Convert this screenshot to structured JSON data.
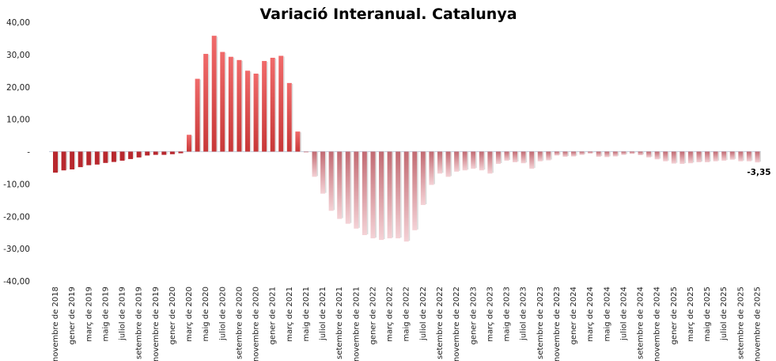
{
  "chart_data": {
    "type": "bar",
    "title": "Variació Interanual. Catalunya",
    "xlabel": "",
    "ylabel": "",
    "ylim": [
      -40,
      40
    ],
    "yticks": [
      40,
      30,
      20,
      10,
      0,
      -10,
      -20,
      -30,
      -40
    ],
    "ytick_labels": [
      "40,00",
      "30,00",
      "20,00",
      "10,00",
      "-",
      "-10,00",
      "-20,00",
      "-30,00",
      "-40,00"
    ],
    "grid": false,
    "legend": "none",
    "colors": {
      "dark": "#a8141c",
      "bright": "#e05858",
      "pale": "#f2c6cc"
    },
    "categories": [
      "novembre de 2018",
      "desembre de 2018",
      "gener de 2019",
      "febrer de 2019",
      "març de 2019",
      "abril de 2019",
      "maig de 2019",
      "juny de 2019",
      "juliol de 2019",
      "agost de 2019",
      "setembre de 2019",
      "octubre de 2019",
      "novembre de 2019",
      "desembre de 2019",
      "gener de 2020",
      "febrer de 2020",
      "març de 2020",
      "abril de 2020",
      "maig de 2020",
      "juny de 2020",
      "juliol de 2020",
      "agost de 2020",
      "setembre de 2020",
      "octubre de 2020",
      "novembre de 2020",
      "desembre de 2020",
      "gener de 2021",
      "febrer de 2021",
      "març de 2021",
      "abril de 2021",
      "maig de 2021",
      "juny de 2021",
      "juliol de 2021",
      "agost de 2021",
      "setembre de 2021",
      "octubre de 2021",
      "novembre de 2021",
      "desembre de 2021",
      "gener de 2022",
      "febrer de 2022",
      "març de 2022",
      "abril de 2022",
      "maig de 2022",
      "juny de 2022",
      "juliol de 2022",
      "agost de 2022",
      "setembre de 2022",
      "octubre de 2022",
      "novembre de 2022",
      "desembre de 2022",
      "gener de 2023",
      "febrer de 2023",
      "març de 2023",
      "abril de 2023",
      "maig de 2023",
      "juny de 2023",
      "juliol de 2023",
      "agost de 2023",
      "setembre de 2023",
      "octubre de 2023",
      "novembre de 2023",
      "desembre de 2023",
      "gener de 2024",
      "febrer de 2024",
      "març de 2024",
      "abril de 2024",
      "maig de 2024",
      "juny de 2024",
      "juliol de 2024",
      "agost de 2024",
      "setembre de 2024",
      "octubre de 2024",
      "novembre de 2024",
      "desembre de 2024",
      "gener de 2025",
      "febrer de 2025",
      "març de 2025",
      "abril de 2025",
      "maig de 2025",
      "juny de 2025",
      "juliol de 2025",
      "agost de 2025",
      "setembre de 2025",
      "octubre de 2025",
      "novembre de 2025"
    ],
    "values": [
      -6.5,
      -5.8,
      -5.5,
      -4.8,
      -4.2,
      -4.0,
      -3.5,
      -3.2,
      -2.8,
      -2.3,
      -1.8,
      -1.2,
      -1.0,
      -1.0,
      -0.8,
      -0.5,
      5.2,
      22.5,
      30.2,
      35.8,
      30.8,
      29.3,
      28.3,
      25.0,
      24.1,
      28.0,
      29.0,
      29.6,
      21.2,
      6.2,
      -0.3,
      -7.8,
      -13.0,
      -18.3,
      -20.8,
      -22.3,
      -23.8,
      -25.8,
      -26.8,
      -27.3,
      -26.8,
      -26.8,
      -27.8,
      -24.3,
      -16.5,
      -10.3,
      -6.8,
      -7.8,
      -6.2,
      -5.8,
      -5.3,
      -5.8,
      -6.8,
      -3.8,
      -2.8,
      -3.3,
      -3.6,
      -5.3,
      -3.0,
      -2.7,
      -1.2,
      -1.6,
      -1.5,
      -1.0,
      -0.6,
      -1.6,
      -1.7,
      -1.5,
      -1.0,
      -0.7,
      -1.1,
      -1.8,
      -2.4,
      -3.0,
      -3.7,
      -3.8,
      -3.6,
      -3.3,
      -3.3,
      -3.0,
      -2.8,
      -2.5,
      -3.0,
      -3.0,
      -3.35
    ],
    "data_labels": [
      {
        "index": 84,
        "text": "-3,35"
      }
    ]
  }
}
